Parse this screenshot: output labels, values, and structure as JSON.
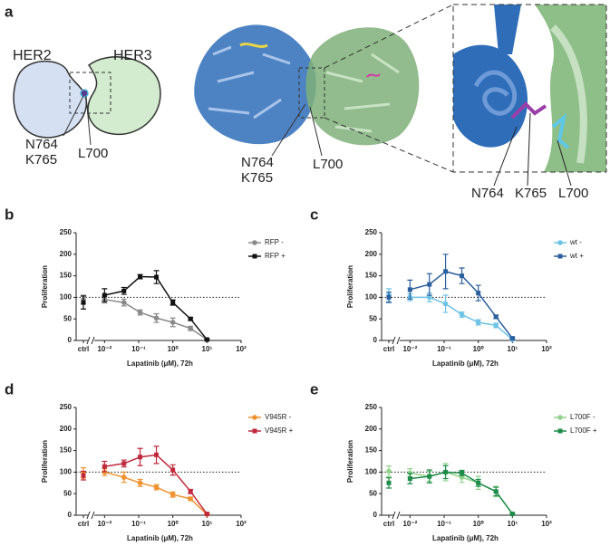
{
  "figure": {
    "panel": "a",
    "cartoon": {
      "left_name": "HER2",
      "right_name": "HER3",
      "labels": [
        "N764",
        "K765",
        "L700"
      ]
    },
    "structure_labels": [
      "N764",
      "K765",
      "L700"
    ],
    "inset_labels": [
      "N764",
      "K765",
      "L700"
    ]
  },
  "chart_data": [
    {
      "type": "line",
      "panel": "b",
      "x_label": "Lapatinib (μM), 72h",
      "y_label": "Proliferation",
      "ctrl_label": "ctrl",
      "x": [
        0.01,
        0.037,
        0.11,
        0.33,
        1,
        3.3,
        10
      ],
      "xscale": "log",
      "xlim": [
        0.006,
        100
      ],
      "xticks": [
        {
          "value": 0.01,
          "label": "10⁻²"
        },
        {
          "value": 0.1,
          "label": "10⁻¹"
        },
        {
          "value": 1,
          "label": "10⁰"
        },
        {
          "value": 10,
          "label": "10¹"
        },
        {
          "value": 100,
          "label": "10²"
        }
      ],
      "ylim": [
        0,
        250
      ],
      "yticks": [
        0,
        50,
        100,
        150,
        200,
        250
      ],
      "reference_line": 100,
      "series": [
        {
          "name": "RFP -",
          "color": "#8a8a8a",
          "marker": "circle",
          "ctrl": 95,
          "ctrl_error": 10,
          "values": [
            95,
            88,
            65,
            52,
            42,
            28,
            2
          ],
          "errors": [
            8,
            8,
            6,
            10,
            10,
            5,
            2
          ]
        },
        {
          "name": "RFP +",
          "color": "#111111",
          "marker": "square",
          "ctrl": 88,
          "ctrl_error": 15,
          "values": [
            105,
            115,
            148,
            147,
            88,
            50,
            2
          ],
          "errors": [
            15,
            8,
            5,
            15,
            6,
            3,
            2
          ]
        }
      ]
    },
    {
      "type": "line",
      "panel": "c",
      "x_label": "Lapatinib (μM), 72h",
      "y_label": "Proliferation",
      "ctrl_label": "ctrl",
      "x": [
        0.01,
        0.037,
        0.11,
        0.33,
        1,
        3.3,
        10
      ],
      "xscale": "log",
      "xlim": [
        0.006,
        100
      ],
      "xticks": [
        {
          "value": 0.01,
          "label": "10⁻²"
        },
        {
          "value": 0.1,
          "label": "10⁻¹"
        },
        {
          "value": 1,
          "label": "10⁰"
        },
        {
          "value": 10,
          "label": "10¹"
        },
        {
          "value": 100,
          "label": "10²"
        }
      ],
      "ylim": [
        0,
        250
      ],
      "yticks": [
        0,
        50,
        100,
        150,
        200,
        250
      ],
      "reference_line": 100,
      "series": [
        {
          "name": "wt -",
          "color": "#6ec3e6",
          "marker": "circle",
          "ctrl": 105,
          "ctrl_error": 15,
          "values": [
            100,
            100,
            85,
            60,
            42,
            35,
            2
          ],
          "errors": [
            8,
            10,
            20,
            6,
            6,
            5,
            2
          ]
        },
        {
          "name": "wt +",
          "color": "#2b5f9e",
          "marker": "square",
          "ctrl": 100,
          "ctrl_error": 12,
          "values": [
            118,
            130,
            160,
            150,
            110,
            55,
            5
          ],
          "errors": [
            22,
            25,
            40,
            18,
            18,
            4,
            2
          ]
        }
      ]
    },
    {
      "type": "line",
      "panel": "d",
      "x_label": "Lapatinib (μM), 72h",
      "y_label": "Proliferation",
      "ctrl_label": "ctrl",
      "x": [
        0.01,
        0.037,
        0.11,
        0.33,
        1,
        3.3,
        10
      ],
      "xscale": "log",
      "xlim": [
        0.006,
        100
      ],
      "xticks": [
        {
          "value": 0.01,
          "label": "10⁻²"
        },
        {
          "value": 0.1,
          "label": "10⁻¹"
        },
        {
          "value": 1,
          "label": "10⁰"
        },
        {
          "value": 10,
          "label": "10¹"
        },
        {
          "value": 100,
          "label": "10²"
        }
      ],
      "ylim": [
        0,
        250
      ],
      "yticks": [
        0,
        50,
        100,
        150,
        200,
        250
      ],
      "reference_line": 100,
      "series": [
        {
          "name": "V945R -",
          "color": "#ef9230",
          "marker": "circle",
          "ctrl": 98,
          "ctrl_error": 12,
          "values": [
            100,
            88,
            75,
            65,
            48,
            38,
            2
          ],
          "errors": [
            8,
            12,
            8,
            6,
            6,
            4,
            2
          ]
        },
        {
          "name": "V945R +",
          "color": "#c0283c",
          "marker": "square",
          "ctrl": 92,
          "ctrl_error": 10,
          "values": [
            113,
            120,
            135,
            140,
            105,
            55,
            3
          ],
          "errors": [
            12,
            8,
            20,
            20,
            12,
            5,
            2
          ]
        }
      ]
    },
    {
      "type": "line",
      "panel": "e",
      "x_label": "Lapatinib (μM), 72h",
      "y_label": "Proliferation",
      "ctrl_label": "ctrl",
      "x": [
        0.01,
        0.037,
        0.11,
        0.33,
        1,
        3.3,
        10
      ],
      "xscale": "log",
      "xlim": [
        0.006,
        100
      ],
      "xticks": [
        {
          "value": 0.01,
          "label": "10⁻²"
        },
        {
          "value": 0.1,
          "label": "10⁻¹"
        },
        {
          "value": 1,
          "label": "10⁰"
        },
        {
          "value": 10,
          "label": "10¹"
        },
        {
          "value": 100,
          "label": "10²"
        }
      ],
      "ylim": [
        0,
        250
      ],
      "yticks": [
        0,
        50,
        100,
        150,
        200,
        250
      ],
      "reference_line": 100,
      "series": [
        {
          "name": "L700F -",
          "color": "#92d38c",
          "marker": "circle",
          "ctrl": 102,
          "ctrl_error": 12,
          "values": [
            98,
            90,
            100,
            88,
            75,
            55,
            3
          ],
          "errors": [
            10,
            12,
            20,
            12,
            15,
            12,
            2
          ]
        },
        {
          "name": "L700F +",
          "color": "#1f8c4a",
          "marker": "square",
          "ctrl": 75,
          "ctrl_error": 12,
          "values": [
            85,
            90,
            100,
            98,
            75,
            55,
            3
          ],
          "errors": [
            12,
            15,
            15,
            6,
            8,
            10,
            2
          ]
        }
      ]
    }
  ]
}
